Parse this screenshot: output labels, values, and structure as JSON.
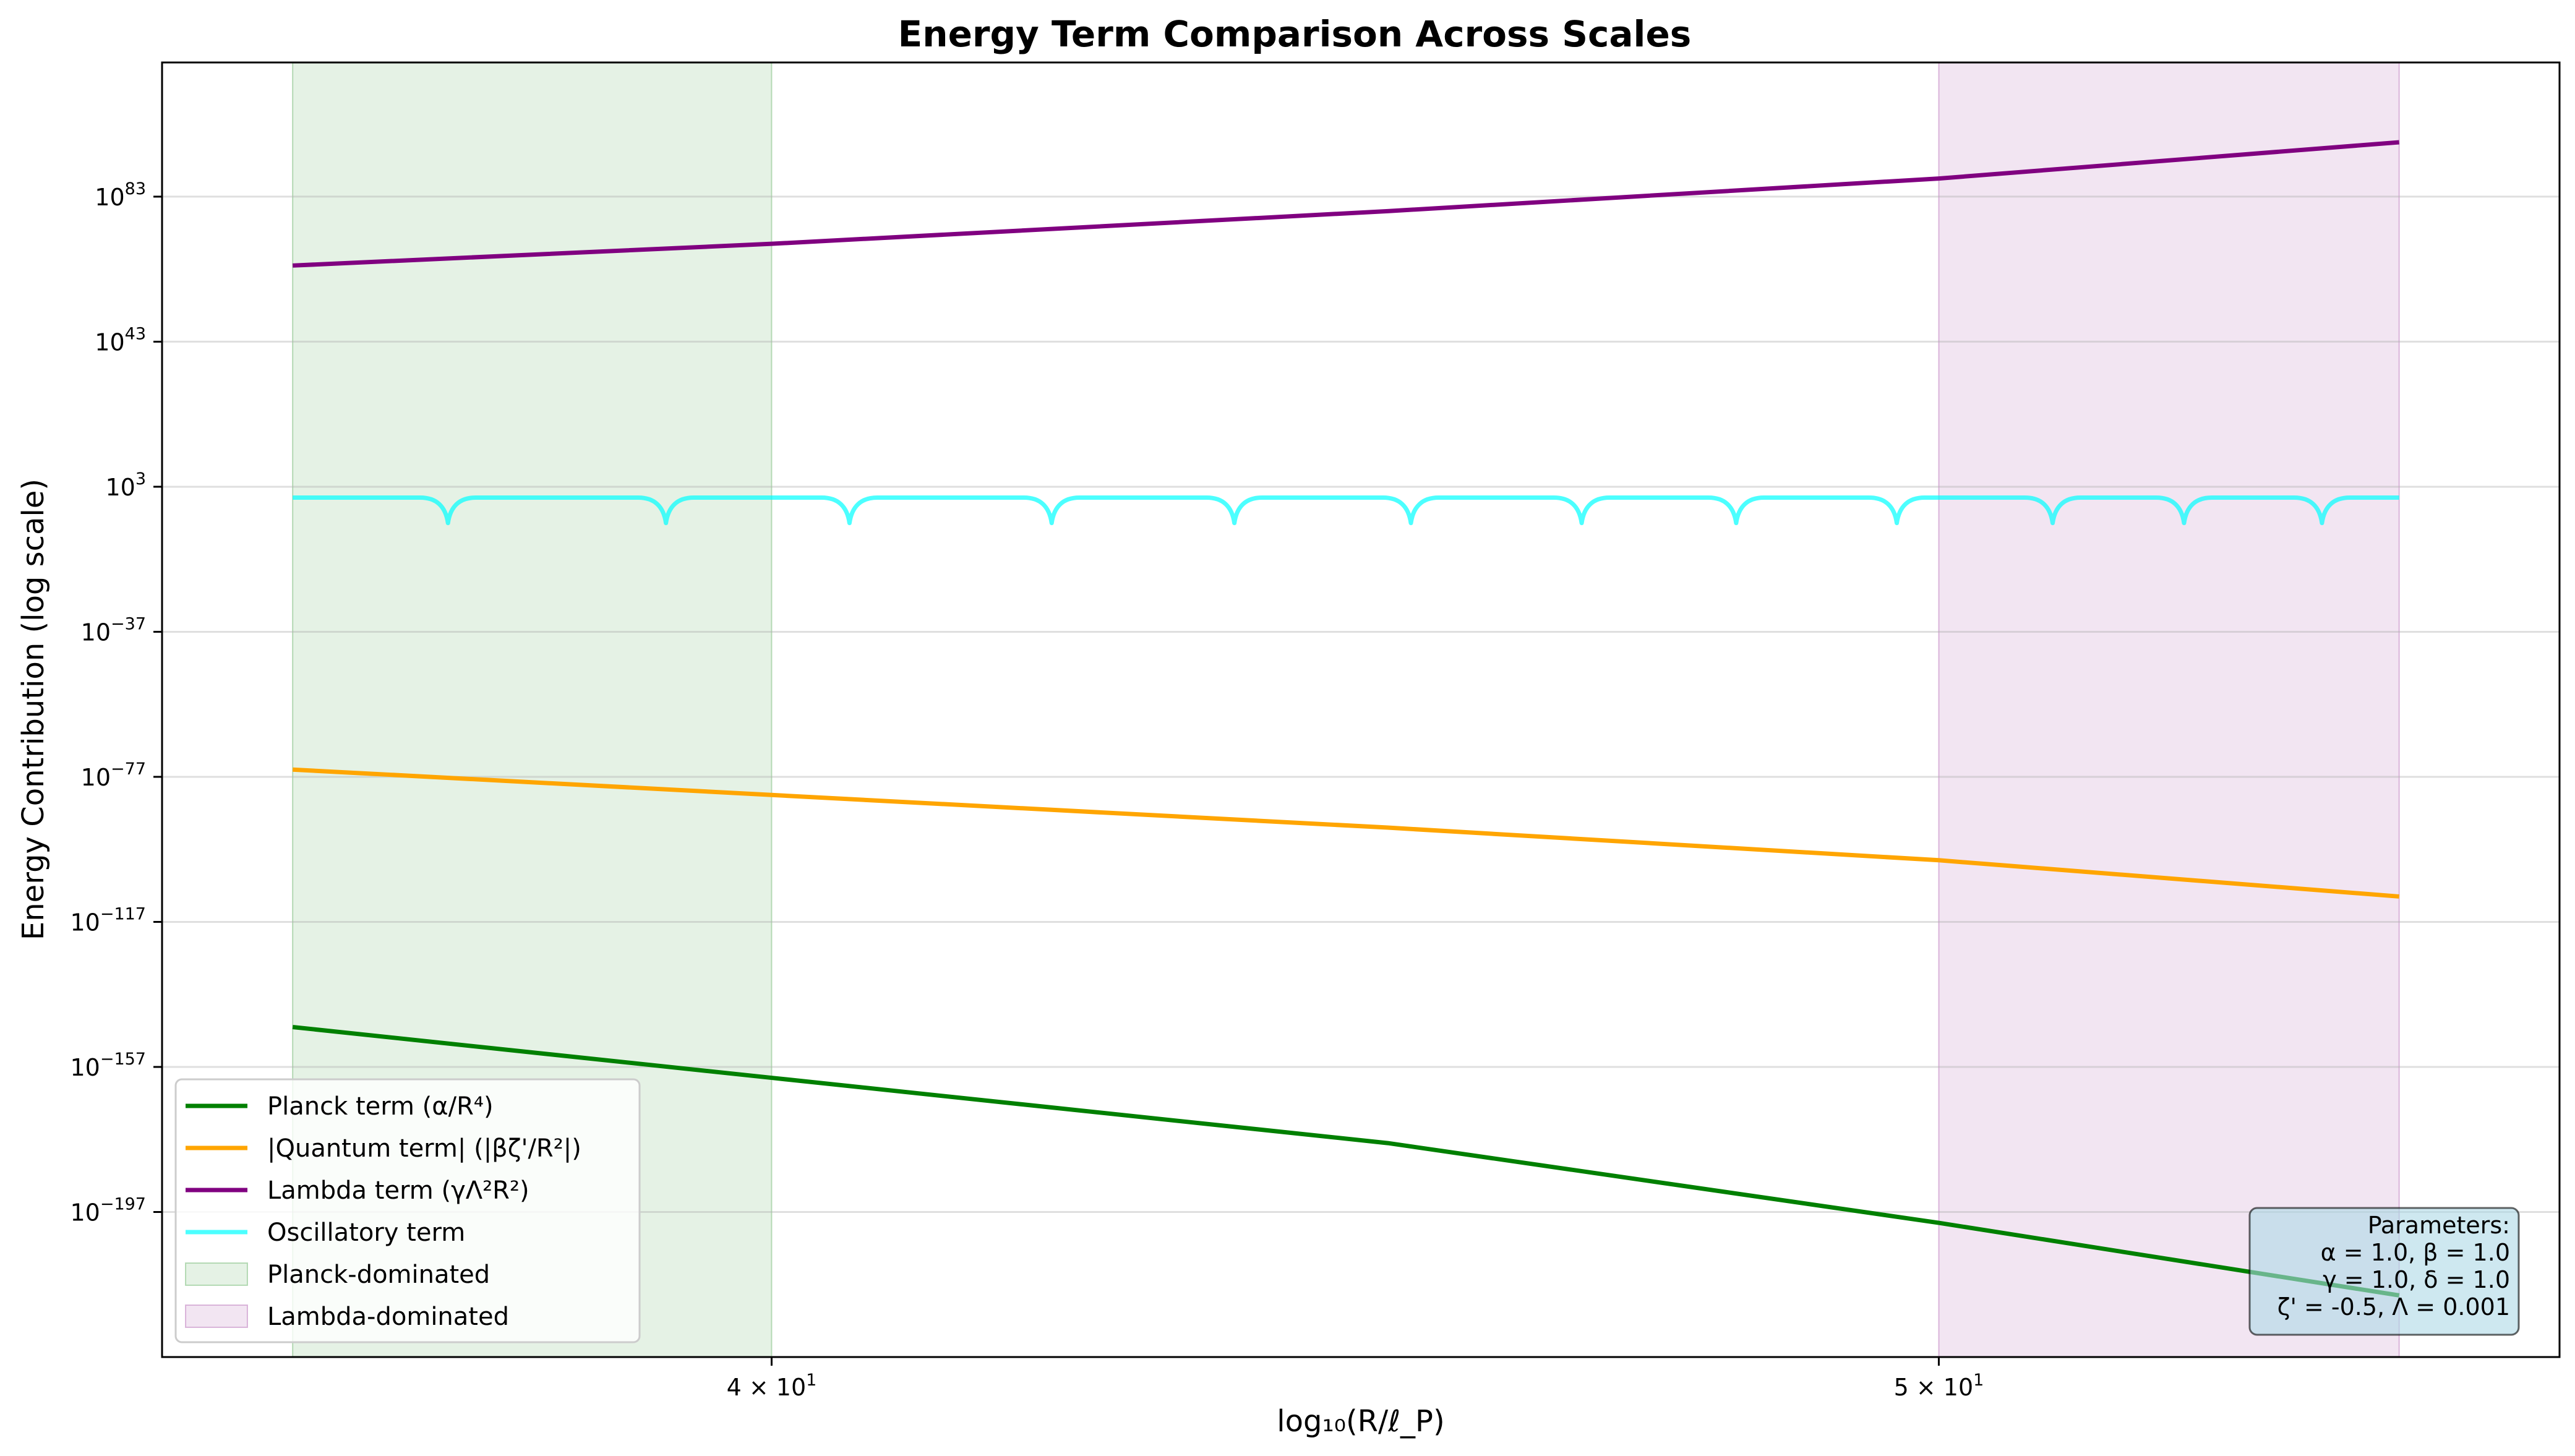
{
  "chart_data": {
    "type": "line",
    "title": "Energy Term Comparison Across Scales",
    "xlabel": "log₁₀(R/ℓ_P)",
    "ylabel": "Energy Contribution (log scale)",
    "x_scale": "log",
    "y_scale": "log",
    "xlim": [
      35.6,
      56.3
    ],
    "ylim_log10": [
      -237,
      120
    ],
    "x_ticks": [
      {
        "value": 40,
        "base": "4 × 10",
        "exp": "1"
      },
      {
        "value": 50,
        "base": "5 × 10",
        "exp": "1"
      }
    ],
    "y_ticks": [
      {
        "log10": 83,
        "base": "10",
        "exp": "83"
      },
      {
        "log10": 43,
        "base": "10",
        "exp": "43"
      },
      {
        "log10": 3,
        "base": "10",
        "exp": "3"
      },
      {
        "log10": -37,
        "base": "10",
        "exp": "−37"
      },
      {
        "log10": -77,
        "base": "10",
        "exp": "−77"
      },
      {
        "log10": -117,
        "base": "10",
        "exp": "−117"
      },
      {
        "log10": -157,
        "base": "10",
        "exp": "−157"
      },
      {
        "log10": -197,
        "base": "10",
        "exp": "−197"
      }
    ],
    "grid": "horizontal",
    "legend_position": "bottom-left",
    "series": [
      {
        "name": "Planck term (α/R⁴)",
        "color": "#008000",
        "x": [
          36.5,
          40,
          45,
          50,
          54.6
        ],
        "log10_y": [
          -146,
          -160,
          -178,
          -200,
          -220
        ]
      },
      {
        "name": "|Quantum term| (|βζ'/R²|)",
        "color": "#ffa500",
        "x": [
          36.5,
          40,
          45,
          50,
          54.6
        ],
        "log10_y": [
          -75,
          -82,
          -91,
          -100,
          -110
        ]
      },
      {
        "name": "Lambda term (γΛ²R²)",
        "color": "#800080",
        "x": [
          36.5,
          40,
          45,
          50,
          54.6
        ],
        "log10_y": [
          64,
          70,
          79,
          88,
          98
        ]
      },
      {
        "name": "Oscillatory term",
        "color": "#00ffff",
        "x": [
          36.5,
          37.6,
          39.2,
          40.6,
          42.2,
          43.7,
          45.2,
          46.7,
          48.1,
          49.6,
          51.1,
          52.4,
          53.8,
          54.6
        ],
        "log10_y": [
          0,
          -7,
          -7,
          -7,
          -7,
          -7,
          -7,
          -7,
          -7,
          -7,
          -7,
          -7,
          -7,
          0
        ]
      }
    ],
    "shaded_regions": [
      {
        "name": "Planck-dominated",
        "color": "#008000",
        "opacity": 0.1,
        "x": [
          36.5,
          40
        ]
      },
      {
        "name": "Lambda-dominated",
        "color": "#800080",
        "opacity": 0.1,
        "x": [
          50,
          54.6
        ]
      }
    ],
    "annotation": {
      "lines": [
        "Parameters:",
        "α = 1.0, β = 1.0",
        "γ = 1.0, δ = 1.0",
        "ζ' = -0.5, Λ = 0.001"
      ],
      "bg_color": "#add8e6"
    }
  }
}
